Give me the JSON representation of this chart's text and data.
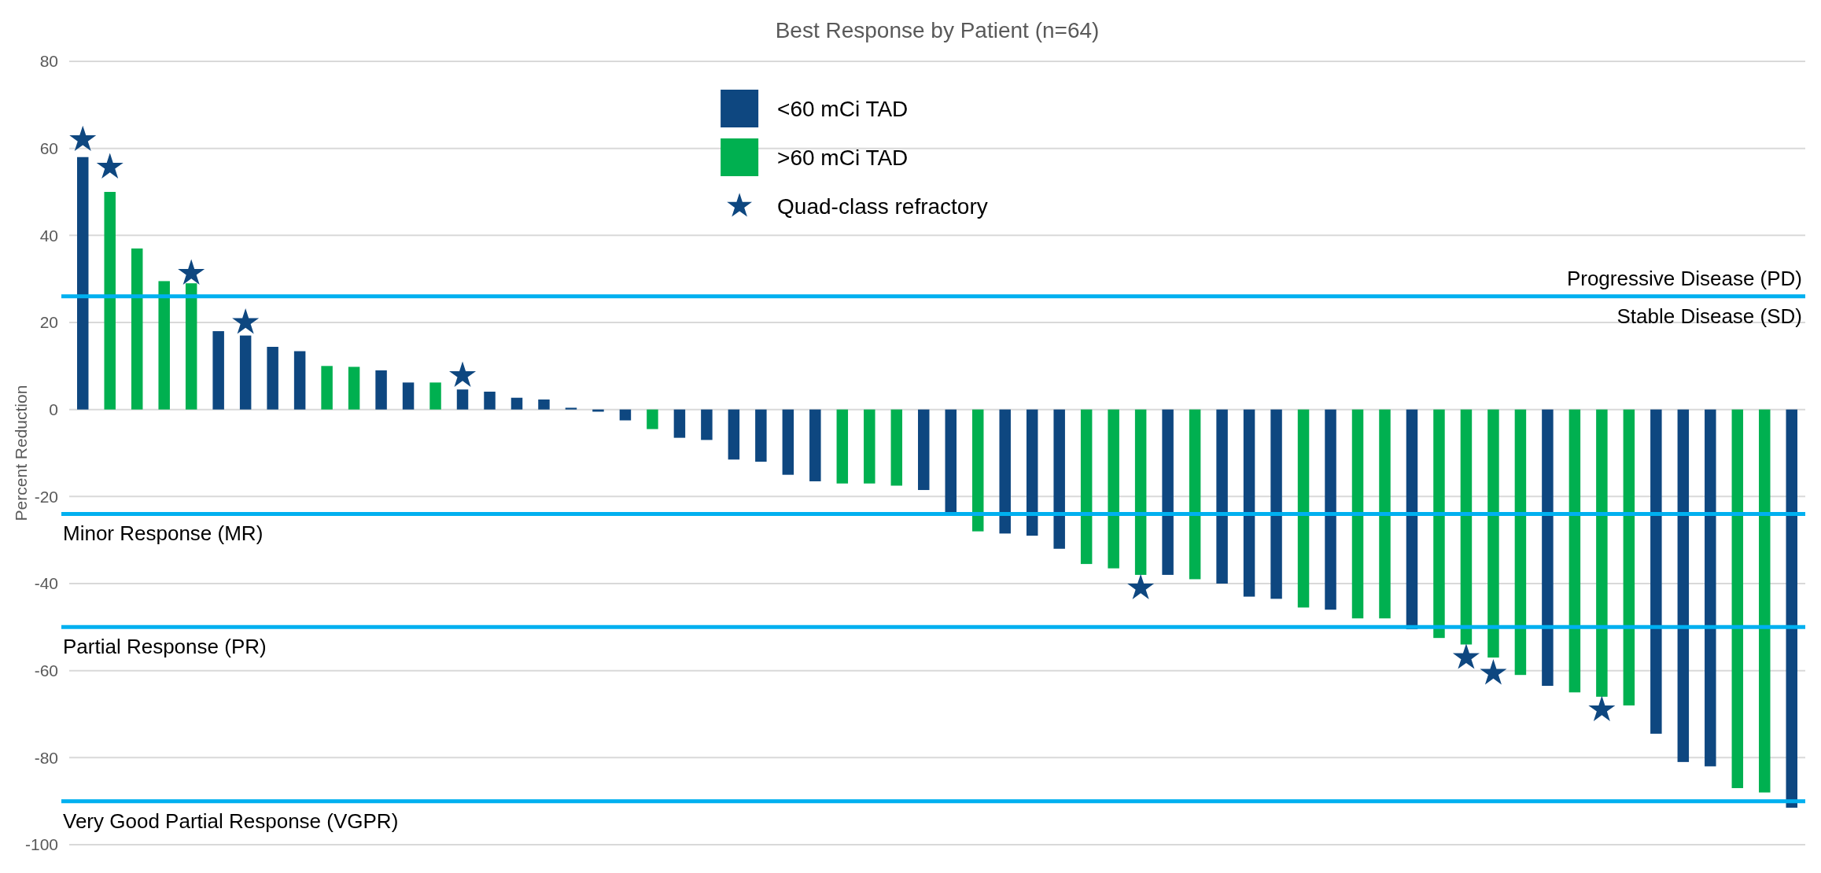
{
  "chart_data": {
    "type": "bar",
    "title": "Best Response by Patient (n=64)",
    "ylabel": "Percent Reduction",
    "categories": [
      null,
      null,
      null,
      null,
      null,
      null,
      null,
      null,
      null,
      null,
      null,
      null,
      null,
      null,
      null,
      null,
      null,
      null,
      null,
      null,
      null,
      null,
      null,
      null,
      null,
      null,
      null,
      null,
      null,
      null,
      null,
      null,
      null,
      null,
      null,
      null,
      null,
      null,
      null,
      null,
      null,
      null,
      null,
      null,
      null,
      null,
      null,
      null,
      null,
      null,
      null,
      null,
      null,
      null,
      null,
      null,
      null,
      null,
      null,
      null,
      null,
      null,
      null,
      null
    ],
    "ylim": [
      -100,
      80
    ],
    "yticks": [
      -100,
      -80,
      -60,
      -40,
      -20,
      0,
      20,
      40,
      60,
      80
    ],
    "grid": "y",
    "legend": "top",
    "series": [
      {
        "name": "<60 mCi TAD",
        "color": "#0e4780",
        "values": [
          58,
          null,
          null,
          null,
          null,
          18,
          17,
          14.4,
          13.4,
          null,
          null,
          9,
          6.2,
          null,
          4.6,
          4.1,
          2.7,
          2.3,
          0.4,
          -0.5,
          -2.5,
          null,
          -6.5,
          -7,
          -11.5,
          -12,
          -15,
          -16.5,
          null,
          null,
          null,
          -18.5,
          -24,
          null,
          -28.5,
          -29,
          -32,
          null,
          null,
          null,
          -38,
          null,
          -40,
          -43,
          -43.5,
          null,
          -46,
          null,
          null,
          -50.5,
          null,
          null,
          null,
          null,
          -63.5,
          null,
          null,
          null,
          -74.5,
          -81,
          -82,
          null,
          null,
          -91.5
        ]
      },
      {
        "name": ">60 mCi TAD",
        "color": "#00b050",
        "values": [
          null,
          50,
          37,
          29.5,
          29,
          null,
          null,
          null,
          null,
          10,
          9.8,
          null,
          null,
          6.2,
          null,
          null,
          null,
          null,
          null,
          null,
          null,
          -4.5,
          null,
          null,
          null,
          null,
          null,
          null,
          -17,
          -17,
          -17.5,
          null,
          null,
          -28,
          null,
          null,
          null,
          -35.5,
          -36.5,
          -38,
          null,
          -39,
          null,
          null,
          null,
          -45.5,
          null,
          -48,
          -48,
          null,
          -52.5,
          -54,
          -57,
          -61,
          null,
          -65,
          -66,
          -68,
          null,
          null,
          null,
          -87,
          -88,
          null
        ]
      },
      {
        "name": "Quad-class refractory",
        "type": "scatter",
        "marker": "star",
        "color": "#0e4780",
        "values": [
          62,
          55.7,
          null,
          null,
          31.3,
          null,
          20,
          null,
          null,
          null,
          null,
          null,
          null,
          null,
          7.8,
          null,
          null,
          null,
          null,
          null,
          null,
          null,
          null,
          null,
          null,
          null,
          null,
          null,
          null,
          null,
          null,
          null,
          null,
          null,
          null,
          null,
          null,
          null,
          null,
          -41,
          null,
          null,
          null,
          null,
          null,
          null,
          null,
          null,
          null,
          null,
          null,
          -57,
          -60.6,
          null,
          null,
          null,
          -69,
          null,
          null,
          null,
          null,
          null,
          null,
          null
        ]
      }
    ],
    "ref_lines": [
      {
        "axis": "y",
        "value": 26,
        "label": "Stable Disease (SD)",
        "color": "#00b0f0"
      },
      {
        "axis": "y",
        "value": -24,
        "label": "Minor Response (MR)",
        "color": "#00b0f0"
      },
      {
        "axis": "y",
        "value": -50,
        "label": "Partial Response (PR)",
        "color": "#00b0f0"
      },
      {
        "axis": "y",
        "value": -90,
        "label": "Very Good Partial Response (VGPR)",
        "color": "#00b0f0"
      }
    ],
    "annotations": [
      "Progressive Disease (PD)"
    ]
  }
}
